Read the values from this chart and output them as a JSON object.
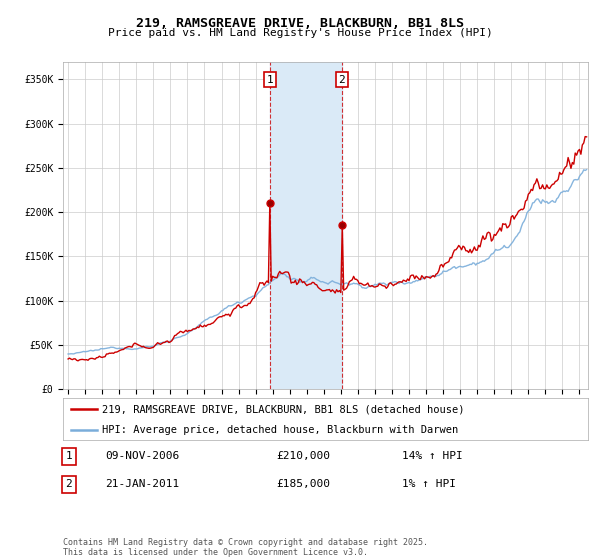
{
  "title": "219, RAMSGREAVE DRIVE, BLACKBURN, BB1 8LS",
  "subtitle": "Price paid vs. HM Land Registry's House Price Index (HPI)",
  "ylabel_ticks": [
    "£0",
    "£50K",
    "£100K",
    "£150K",
    "£200K",
    "£250K",
    "£300K",
    "£350K"
  ],
  "ytick_vals": [
    0,
    50000,
    100000,
    150000,
    200000,
    250000,
    300000,
    350000
  ],
  "ylim": [
    0,
    370000
  ],
  "xlim_start": 1994.7,
  "xlim_end": 2025.5,
  "red_color": "#cc0000",
  "blue_color": "#7aadda",
  "shaded_color": "#daeaf7",
  "marker1_x": 2006.86,
  "marker2_x": 2011.05,
  "marker1_price": 210000,
  "marker2_price": 185000,
  "marker1_label": "1",
  "marker2_label": "2",
  "sale1_date": "09-NOV-2006",
  "sale1_price": "£210,000",
  "sale1_hpi": "14% ↑ HPI",
  "sale2_date": "21-JAN-2011",
  "sale2_price": "£185,000",
  "sale2_hpi": "1% ↑ HPI",
  "legend1": "219, RAMSGREAVE DRIVE, BLACKBURN, BB1 8LS (detached house)",
  "legend2": "HPI: Average price, detached house, Blackburn with Darwen",
  "footer": "Contains HM Land Registry data © Crown copyright and database right 2025.\nThis data is licensed under the Open Government Licence v3.0.",
  "background_color": "#ffffff",
  "grid_color": "#cccccc",
  "title_fontsize": 9.5,
  "subtitle_fontsize": 8,
  "tick_fontsize": 7,
  "legend_fontsize": 7.5,
  "info_fontsize": 8
}
